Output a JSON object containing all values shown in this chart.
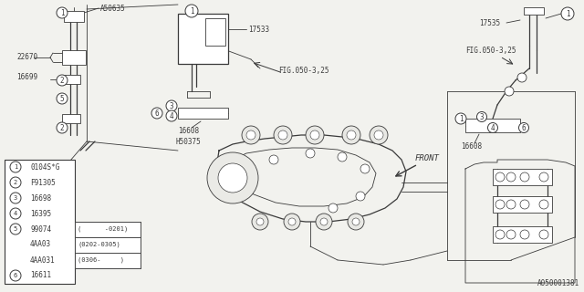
{
  "bg_color": "#f0f0ec",
  "line_color": "#3a3a3a",
  "white": "#ffffff",
  "bottom_right": "A050001381",
  "top_left_ref": "A50635",
  "legend": [
    [
      "1",
      "0104S*G",
      ""
    ],
    [
      "2",
      "F91305",
      ""
    ],
    [
      "3",
      "16698",
      ""
    ],
    [
      "4",
      "16395",
      ""
    ],
    [
      "5",
      "99074",
      "(      -0201)"
    ],
    [
      "5",
      "4AA03",
      "(0202-0305)"
    ],
    [
      "5",
      "4AA031",
      "(0306-     )"
    ],
    [
      "6",
      "16611",
      ""
    ]
  ]
}
